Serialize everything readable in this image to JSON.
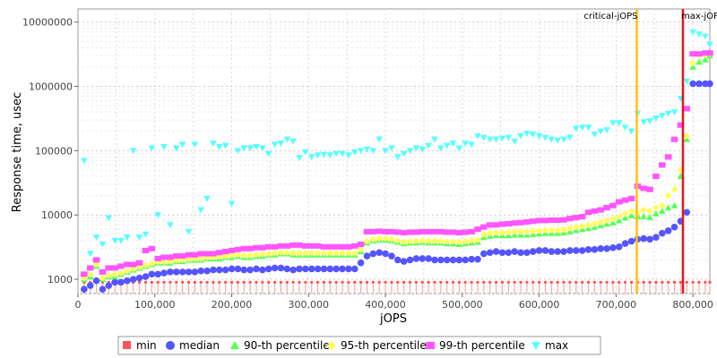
{
  "chart_data": {
    "type": "scatter",
    "xlabel": "jOPS",
    "ylabel": "Response time, usec",
    "xlim": [
      0,
      822000
    ],
    "ylim": [
      600,
      16000000
    ],
    "y_scale": "log",
    "grid": true,
    "legend_placement": "bottom",
    "x_ticks": [
      {
        "value": 0,
        "label": "0"
      },
      {
        "value": 100000,
        "label": "100,000"
      },
      {
        "value": 200000,
        "label": "200,000"
      },
      {
        "value": 300000,
        "label": "300,000"
      },
      {
        "value": 400000,
        "label": "400,000"
      },
      {
        "value": 500000,
        "label": "500,000"
      },
      {
        "value": 600000,
        "label": "600,000"
      },
      {
        "value": 700000,
        "label": "700,000"
      },
      {
        "value": 800000,
        "label": "800,000"
      }
    ],
    "y_ticks": [
      {
        "value": 1000,
        "label": "1000"
      },
      {
        "value": 10000,
        "label": "10000"
      },
      {
        "value": 100000,
        "label": "100000"
      },
      {
        "value": 1000000,
        "label": "1000000"
      },
      {
        "value": 10000000,
        "label": "10000000"
      }
    ],
    "markers": [
      {
        "name": "critical-jOPS",
        "x": 727000,
        "color": "#ffc20e"
      },
      {
        "name": "max-jOPS",
        "x": 787000,
        "color": "#e8141a"
      }
    ],
    "x": [
      8000,
      16000,
      24000,
      32000,
      40000,
      48000,
      56000,
      64000,
      72000,
      80000,
      88000,
      96000,
      104000,
      112000,
      120000,
      128000,
      136000,
      144000,
      152000,
      160000,
      168000,
      176000,
      184000,
      192000,
      200000,
      208000,
      216000,
      224000,
      232000,
      240000,
      248000,
      256000,
      264000,
      272000,
      280000,
      288000,
      296000,
      304000,
      312000,
      320000,
      328000,
      336000,
      344000,
      352000,
      360000,
      368000,
      376000,
      384000,
      392000,
      400000,
      408000,
      416000,
      424000,
      432000,
      440000,
      448000,
      456000,
      464000,
      472000,
      480000,
      488000,
      496000,
      504000,
      512000,
      520000,
      528000,
      536000,
      544000,
      552000,
      560000,
      568000,
      576000,
      584000,
      592000,
      600000,
      608000,
      616000,
      624000,
      632000,
      640000,
      648000,
      656000,
      664000,
      672000,
      680000,
      688000,
      696000,
      704000,
      712000,
      720000,
      728000,
      736000,
      744000,
      752000,
      760000,
      768000,
      776000,
      784000,
      792000,
      800000,
      808000,
      816000,
      822000
    ],
    "series": [
      {
        "name": "min",
        "color": "#ff5555",
        "shape": "square",
        "values": [
          900,
          900,
          900,
          900,
          900,
          900,
          900,
          900,
          900,
          900,
          900,
          900,
          900,
          900,
          900,
          900,
          900,
          900,
          900,
          900,
          900,
          900,
          900,
          900,
          900,
          900,
          900,
          900,
          900,
          900,
          900,
          900,
          900,
          900,
          900,
          900,
          900,
          900,
          900,
          900,
          900,
          900,
          900,
          900,
          900,
          900,
          900,
          900,
          900,
          900,
          900,
          900,
          900,
          900,
          900,
          900,
          900,
          900,
          900,
          900,
          900,
          900,
          900,
          900,
          900,
          900,
          900,
          900,
          900,
          900,
          900,
          900,
          900,
          900,
          900,
          900,
          900,
          900,
          900,
          900,
          900,
          900,
          900,
          900,
          900,
          900,
          900,
          900,
          900,
          900,
          900,
          900,
          900,
          900,
          900,
          900,
          900,
          900,
          900,
          900,
          900,
          900,
          900
        ]
      },
      {
        "name": "median",
        "color": "#5555ff",
        "shape": "circle",
        "values": [
          700,
          800,
          950,
          700,
          800,
          900,
          900,
          950,
          1000,
          1050,
          1100,
          1200,
          1200,
          1250,
          1300,
          1300,
          1300,
          1300,
          1300,
          1350,
          1350,
          1400,
          1400,
          1400,
          1450,
          1450,
          1400,
          1400,
          1450,
          1400,
          1450,
          1500,
          1500,
          1450,
          1400,
          1450,
          1450,
          1450,
          1450,
          1450,
          1450,
          1450,
          1450,
          1450,
          1450,
          1800,
          2300,
          2500,
          2600,
          2500,
          2300,
          2000,
          1900,
          2000,
          2100,
          2100,
          2100,
          2000,
          2000,
          2000,
          2000,
          2000,
          2000,
          2050,
          2050,
          2500,
          2600,
          2700,
          2600,
          2600,
          2700,
          2600,
          2600,
          2700,
          2800,
          2800,
          2700,
          2700,
          2700,
          2800,
          2800,
          2800,
          2900,
          2900,
          3000,
          3000,
          3100,
          3200,
          3600,
          3900,
          4200,
          4300,
          4200,
          4500,
          5200,
          5700,
          6500,
          8000,
          11000,
          1100000,
          1100000,
          1100000,
          1100000
        ]
      },
      {
        "name": "90-th percentile",
        "color": "#55ff55",
        "shape": "triangle-up",
        "values": [
          1000,
          1100,
          1600,
          1000,
          1100,
          1100,
          1200,
          1300,
          1400,
          1500,
          1600,
          1700,
          1800,
          1800,
          1800,
          1900,
          1900,
          2000,
          2000,
          2000,
          2100,
          2100,
          2100,
          2200,
          2200,
          2300,
          2200,
          2200,
          2300,
          2300,
          2400,
          2400,
          2500,
          2500,
          2400,
          2400,
          2400,
          2400,
          2400,
          2400,
          2400,
          2400,
          2400,
          2400,
          2400,
          2700,
          3700,
          4000,
          4100,
          4100,
          4000,
          3800,
          3600,
          3700,
          3700,
          3800,
          3700,
          3700,
          3700,
          3600,
          3600,
          3500,
          3600,
          3700,
          3800,
          4500,
          4700,
          4800,
          4800,
          4800,
          4900,
          4900,
          4900,
          5000,
          5100,
          5200,
          5200,
          5200,
          5300,
          5500,
          5800,
          6000,
          6200,
          6500,
          6900,
          7300,
          7600,
          8200,
          9000,
          9800,
          9500,
          9500,
          9200,
          10500,
          11500,
          13000,
          14000,
          40000,
          150000,
          2000000,
          2400000,
          2600000,
          3000000
        ]
      },
      {
        "name": "95-th percentile",
        "color": "#ffff55",
        "shape": "diamond",
        "values": [
          1050,
          1200,
          1700,
          1050,
          1150,
          1200,
          1250,
          1350,
          1450,
          1550,
          1650,
          1750,
          1850,
          1850,
          1900,
          1950,
          2000,
          2050,
          2100,
          2100,
          2200,
          2200,
          2250,
          2300,
          2350,
          2400,
          2350,
          2350,
          2400,
          2450,
          2500,
          2550,
          2600,
          2600,
          2550,
          2550,
          2550,
          2550,
          2550,
          2550,
          2550,
          2550,
          2550,
          2550,
          2550,
          2900,
          3900,
          4200,
          4300,
          4300,
          4200,
          4000,
          3800,
          3900,
          3950,
          4000,
          3950,
          3950,
          3900,
          3850,
          3850,
          3800,
          3900,
          4000,
          4100,
          5000,
          5200,
          5300,
          5300,
          5400,
          5500,
          5500,
          5500,
          5600,
          5700,
          5800,
          5800,
          5800,
          5900,
          6200,
          6500,
          6700,
          7000,
          7300,
          7700,
          8200,
          8700,
          9500,
          10500,
          11500,
          11000,
          12000,
          11500,
          13000,
          14000,
          20000,
          25000,
          50000,
          170000,
          2300000,
          3000000,
          3100000,
          3200000
        ]
      },
      {
        "name": "99-th percentile",
        "color": "#ff55ff",
        "shape": "square",
        "values": [
          1200,
          1500,
          2000,
          1300,
          1500,
          1500,
          1600,
          1700,
          1700,
          1800,
          2800,
          3000,
          2100,
          2200,
          2200,
          2300,
          2300,
          2400,
          2400,
          2500,
          2500,
          2500,
          2600,
          2700,
          2800,
          2900,
          3000,
          3000,
          3100,
          3100,
          3200,
          3200,
          3300,
          3300,
          3400,
          3400,
          3300,
          3300,
          3300,
          3200,
          3200,
          3200,
          3200,
          3200,
          3300,
          3500,
          5500,
          5500,
          5600,
          5500,
          5500,
          5400,
          5300,
          5400,
          5400,
          5500,
          5500,
          5500,
          5500,
          5400,
          5400,
          5300,
          5400,
          5500,
          6000,
          6500,
          7000,
          7000,
          7200,
          7300,
          7500,
          7600,
          7800,
          8000,
          8200,
          8200,
          8300,
          8300,
          8400,
          8800,
          9100,
          9400,
          11000,
          11500,
          12000,
          13000,
          14000,
          16000,
          17000,
          18000,
          28000,
          26000,
          25000,
          40000,
          60000,
          80000,
          150000,
          250000,
          450000,
          3200000,
          3200000,
          3300000,
          3300000
        ]
      },
      {
        "name": "max",
        "color": "#55ffff",
        "shape": "triangle-down",
        "values": [
          70000,
          2500,
          4500,
          3500,
          9000,
          4000,
          4000,
          4500,
          100000,
          4500,
          5000,
          110000,
          10000,
          115000,
          7000,
          110000,
          125000,
          5500,
          125000,
          12000,
          18000,
          130000,
          115000,
          120000,
          15000,
          100000,
          110000,
          110000,
          115000,
          110000,
          90000,
          125000,
          130000,
          150000,
          140000,
          78000,
          95000,
          80000,
          85000,
          87000,
          85000,
          90000,
          90000,
          85000,
          95000,
          100000,
          105000,
          100000,
          150000,
          100000,
          110000,
          80000,
          90000,
          100000,
          110000,
          105000,
          120000,
          150000,
          110000,
          120000,
          130000,
          110000,
          130000,
          125000,
          170000,
          160000,
          150000,
          150000,
          155000,
          160000,
          140000,
          170000,
          185000,
          180000,
          170000,
          160000,
          150000,
          145000,
          150000,
          160000,
          220000,
          230000,
          230000,
          180000,
          200000,
          210000,
          270000,
          270000,
          230000,
          200000,
          380000,
          280000,
          290000,
          320000,
          350000,
          380000,
          400000,
          650000,
          1200000,
          7000000,
          6500000,
          6000000,
          4500000
        ]
      }
    ]
  }
}
